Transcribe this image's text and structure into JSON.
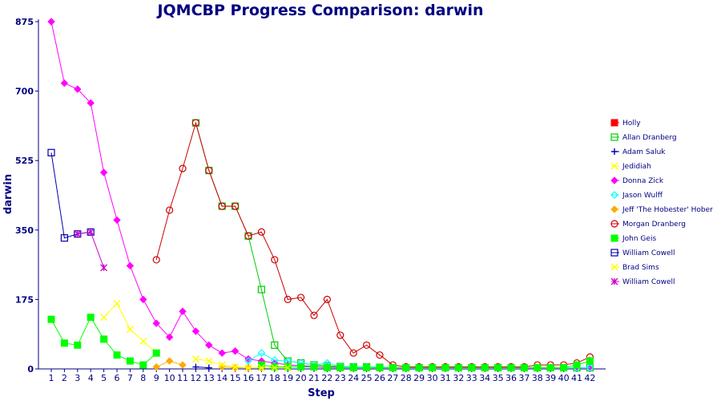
{
  "chart_data": {
    "type": "line",
    "title": "JQMCBP Progress Comparison: darwin",
    "xlabel": "Step",
    "ylabel": "darwin",
    "ylim": [
      0,
      875
    ],
    "yticks": [
      0,
      175,
      350,
      525,
      700,
      875
    ],
    "x": [
      1,
      2,
      3,
      4,
      5,
      6,
      7,
      8,
      9,
      10,
      11,
      12,
      13,
      14,
      15,
      16,
      17,
      18,
      19,
      20,
      21,
      22,
      23,
      24,
      25,
      26,
      27,
      28,
      29,
      30,
      31,
      32,
      33,
      34,
      35,
      36,
      37,
      38,
      39,
      40,
      41,
      42
    ],
    "legend_position": "right",
    "grid": false,
    "series": [
      {
        "name": "Holly",
        "color": "#ff0000",
        "marker": "square-filled",
        "values": [
          null,
          null,
          null,
          null,
          null,
          null,
          null,
          null,
          null,
          null,
          null,
          null,
          null,
          null,
          null,
          null,
          null,
          null,
          null,
          null,
          null,
          null,
          null,
          null,
          null,
          null,
          null,
          null,
          null,
          null,
          null,
          null,
          null,
          null,
          null,
          null,
          null,
          null,
          null,
          null,
          null,
          null
        ]
      },
      {
        "name": "Allan Dranberg",
        "color": "#00cc00",
        "marker": "square-open",
        "values": [
          null,
          null,
          null,
          null,
          null,
          null,
          null,
          null,
          null,
          null,
          null,
          620,
          500,
          410,
          410,
          335,
          200,
          60,
          20,
          15,
          10,
          8,
          6,
          5,
          5,
          4,
          3,
          3,
          3,
          3,
          3,
          3,
          3,
          3,
          3,
          3,
          3,
          3,
          3,
          3,
          3,
          3
        ]
      },
      {
        "name": "Adam Saluk",
        "color": "#0000aa",
        "marker": "plus",
        "values": [
          null,
          null,
          null,
          null,
          null,
          null,
          null,
          null,
          null,
          null,
          null,
          5,
          3,
          null,
          null,
          null,
          null,
          null,
          null,
          null,
          null,
          null,
          null,
          null,
          null,
          null,
          null,
          null,
          null,
          null,
          null,
          null,
          null,
          null,
          null,
          null,
          null,
          null,
          null,
          null,
          null,
          null
        ]
      },
      {
        "name": "Jedidiah",
        "color": "#ffff00",
        "marker": "x",
        "values": [
          null,
          null,
          null,
          null,
          130,
          165,
          100,
          70,
          40,
          null,
          null,
          null,
          null,
          null,
          null,
          null,
          null,
          null,
          null,
          null,
          null,
          null,
          null,
          null,
          null,
          null,
          null,
          null,
          null,
          null,
          null,
          null,
          null,
          null,
          null,
          null,
          null,
          null,
          null,
          null,
          null,
          null
        ]
      },
      {
        "name": "Donna Zick",
        "color": "#ff00ff",
        "marker": "diamond-filled",
        "values": [
          875,
          720,
          705,
          670,
          495,
          375,
          260,
          175,
          115,
          80,
          145,
          95,
          60,
          40,
          45,
          25,
          20,
          15,
          10,
          8,
          6,
          5,
          4,
          3,
          3,
          3,
          3,
          3,
          3,
          3,
          3,
          3,
          3,
          3,
          3,
          3,
          3,
          3,
          3,
          3,
          3,
          3
        ]
      },
      {
        "name": "Jason Wulff",
        "color": "#00ffff",
        "marker": "diamond-open",
        "values": [
          null,
          null,
          null,
          null,
          null,
          null,
          null,
          null,
          null,
          null,
          null,
          null,
          null,
          null,
          null,
          20,
          40,
          22,
          20,
          15,
          10,
          15,
          6,
          5,
          5,
          4,
          3,
          3,
          3,
          3,
          3,
          3,
          3,
          3,
          3,
          3,
          3,
          3,
          3,
          3,
          3,
          3
        ]
      },
      {
        "name": "Jeff 'The Hobester' Hober",
        "color": "#ffaa00",
        "marker": "diamond-filled",
        "values": [
          null,
          null,
          null,
          null,
          null,
          null,
          null,
          null,
          5,
          20,
          10,
          null,
          null,
          5,
          3,
          3,
          3,
          null,
          null,
          null,
          null,
          null,
          null,
          null,
          null,
          null,
          null,
          null,
          null,
          null,
          null,
          null,
          null,
          null,
          null,
          null,
          null,
          null,
          null,
          null,
          null,
          null
        ]
      },
      {
        "name": "Morgan Dranberg",
        "color": "#cc0000",
        "marker": "circle-open",
        "values": [
          null,
          null,
          null,
          null,
          null,
          null,
          null,
          null,
          275,
          400,
          505,
          620,
          500,
          410,
          410,
          335,
          345,
          275,
          175,
          180,
          135,
          175,
          85,
          40,
          60,
          35,
          10,
          5,
          5,
          5,
          5,
          5,
          5,
          5,
          5,
          5,
          5,
          10,
          10,
          10,
          15,
          30
        ]
      },
      {
        "name": "John Geis",
        "color": "#00ff00",
        "marker": "square-filled",
        "values": [
          125,
          65,
          60,
          130,
          75,
          35,
          20,
          10,
          40,
          null,
          null,
          null,
          null,
          null,
          null,
          null,
          10,
          5,
          5,
          5,
          5,
          3,
          3,
          3,
          3,
          3,
          3,
          3,
          3,
          3,
          3,
          3,
          3,
          3,
          3,
          3,
          3,
          3,
          3,
          3,
          10,
          20
        ]
      },
      {
        "name": "William Cowell",
        "color": "#0000aa",
        "marker": "square-open",
        "values": [
          545,
          330,
          340,
          345,
          null,
          null,
          null,
          null,
          null,
          null,
          null,
          null,
          null,
          null,
          null,
          null,
          null,
          null,
          null,
          null,
          null,
          null,
          null,
          null,
          null,
          null,
          null,
          null,
          null,
          null,
          null,
          null,
          null,
          null,
          null,
          null,
          null,
          null,
          null,
          null,
          null,
          null
        ]
      },
      {
        "name": "Brad Sims",
        "color": "#ffff00",
        "marker": "x",
        "values": [
          null,
          null,
          null,
          null,
          null,
          null,
          null,
          null,
          null,
          null,
          null,
          25,
          20,
          10,
          5,
          3,
          3,
          3,
          3,
          null,
          null,
          null,
          null,
          null,
          null,
          null,
          null,
          null,
          null,
          null,
          null,
          null,
          null,
          null,
          null,
          null,
          null,
          null,
          null,
          null,
          null,
          null
        ]
      },
      {
        "name": "William Cowell",
        "color": "#cc00cc",
        "marker": "star",
        "values": [
          null,
          null,
          340,
          345,
          255,
          null,
          null,
          null,
          null,
          null,
          null,
          null,
          null,
          null,
          null,
          null,
          null,
          null,
          null,
          null,
          null,
          null,
          null,
          null,
          null,
          null,
          null,
          null,
          null,
          null,
          null,
          null,
          null,
          null,
          null,
          null,
          null,
          null,
          null,
          null,
          null,
          null
        ]
      }
    ]
  }
}
